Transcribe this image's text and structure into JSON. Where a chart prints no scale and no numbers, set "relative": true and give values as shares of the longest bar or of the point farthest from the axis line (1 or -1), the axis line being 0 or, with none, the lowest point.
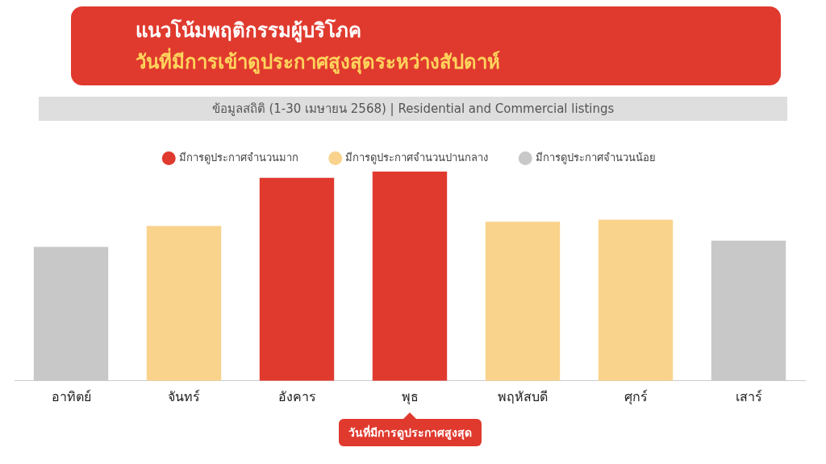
{
  "chart_data": {
    "type": "bar",
    "title": "แนวโน้มพฤติกรรมผู้บริโภค",
    "subtitle": "วันที่มีการเข้าดูประกาศสูงสุดระหว่างสัปดาห์",
    "categories": [
      "อาทิตย์",
      "จันทร์",
      "อังคาร",
      "พุธ",
      "พฤหัสบดี",
      "ศุกร์",
      "เสาร์"
    ],
    "series": [
      {
        "name": "มีการดูประกาศจำนวนมาก",
        "color": "#e03a2f",
        "values": [
          null,
          null,
          0.97,
          1,
          null,
          null,
          null
        ]
      },
      {
        "name": "มีการดูประกาศจำนวนปานกลาง",
        "color": "#f9d38c",
        "values": [
          null,
          0.74,
          null,
          null,
          0.76,
          0.77,
          null
        ]
      },
      {
        "name": "มีการดูประกาศจำนวนน้อย",
        "color": "#c8c8c8",
        "values": [
          0.64,
          null,
          null,
          null,
          null,
          null,
          0.67
        ]
      }
    ],
    "stacked": true,
    "relative": true,
    "legend": "top",
    "annotations": [
      "ข้อมูลสถิติ (1-30 เมษายน 2568) | Residential and Commercial listings",
      "วันที่มีการดูประกาศสูงสุด"
    ]
  }
}
